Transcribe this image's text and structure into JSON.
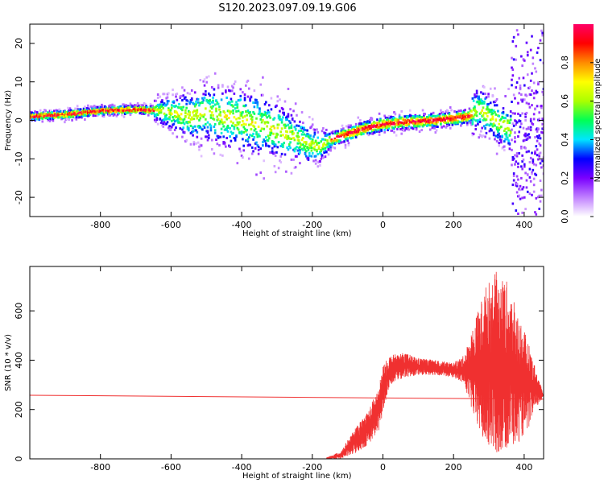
{
  "title": "S120.2023.097.09.19.G06",
  "chart_data": [
    {
      "type": "heatmap",
      "xlabel": "Height of straight line (km)",
      "ylabel": "Frequency (Hz)",
      "xlim": [
        -1000,
        455
      ],
      "ylim": [
        -25,
        25
      ],
      "xticks": [
        -800,
        -600,
        -400,
        -200,
        0,
        200,
        400
      ],
      "yticks": [
        -20,
        -10,
        0,
        10,
        20
      ],
      "colorbar": {
        "label": "Normalized spectral amplitude",
        "range": [
          0,
          1
        ],
        "ticks": [
          0.0,
          0.2,
          0.4,
          0.6,
          0.8
        ],
        "colors": [
          "#ffffff",
          "#c080ff",
          "#7a00ff",
          "#0000ff",
          "#00e5ff",
          "#00ff55",
          "#aaff00",
          "#ffff00",
          "#ff8c00",
          "#ff0000",
          "#ff0066"
        ]
      },
      "ridge": {
        "x": [
          -1000,
          -900,
          -800,
          -700,
          -650,
          -600,
          -550,
          -500,
          -450,
          -400,
          -350,
          -300,
          -250,
          -200,
          -180,
          -150,
          -100,
          -50,
          0,
          50,
          100,
          150,
          200,
          240,
          270,
          300,
          330,
          360
        ],
        "y": [
          1.0,
          1.5,
          2.5,
          2.8,
          2.6,
          2.0,
          1.0,
          2.0,
          1.0,
          0.0,
          -1.0,
          -2.5,
          -4.5,
          -6.5,
          -7.0,
          -5.0,
          -3.5,
          -2.0,
          -1.0,
          -0.5,
          -0.3,
          0.0,
          0.5,
          1.0,
          3.0,
          1.0,
          -1.0,
          -2.0
        ]
      }
    },
    {
      "type": "line",
      "xlabel": "Height of straight line (km)",
      "ylabel": "SNR (10 * v/v)",
      "xlim": [
        -1000,
        455
      ],
      "ylim": [
        0,
        780
      ],
      "xticks": [
        -800,
        -600,
        -400,
        -200,
        0,
        200,
        400
      ],
      "yticks": [
        0,
        200,
        400,
        600
      ],
      "color": "#f03030",
      "reference_line": {
        "x": [
          -1000,
          455
        ],
        "y": [
          258,
          242
        ]
      },
      "envelope": {
        "x": [
          -160,
          -120,
          -80,
          -40,
          -10,
          0,
          20,
          60,
          100,
          150,
          200,
          230,
          260,
          290,
          320,
          350,
          380,
          410,
          440,
          455
        ],
        "low": [
          0,
          0,
          20,
          60,
          120,
          200,
          300,
          330,
          340,
          340,
          330,
          300,
          150,
          40,
          20,
          30,
          60,
          120,
          220,
          250
        ],
        "high": [
          5,
          30,
          120,
          200,
          300,
          380,
          420,
          430,
          410,
          400,
          390,
          420,
          560,
          700,
          760,
          720,
          600,
          480,
          330,
          260
        ]
      }
    }
  ]
}
